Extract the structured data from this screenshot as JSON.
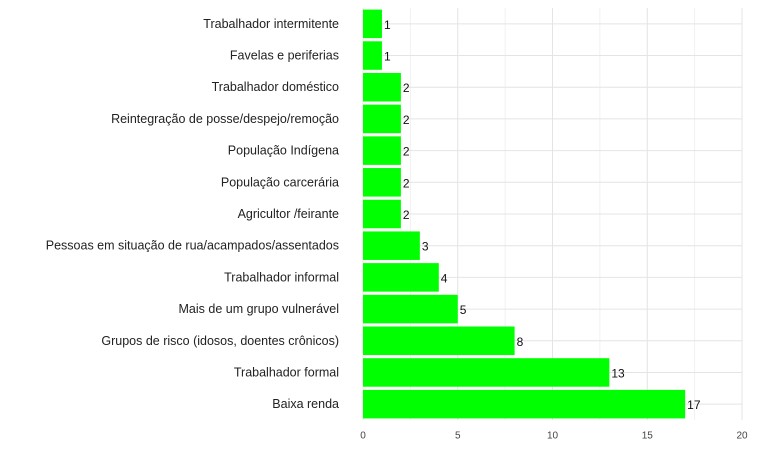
{
  "chart_data": {
    "type": "bar",
    "orientation": "horizontal",
    "title": "",
    "xlabel": "",
    "ylabel": "",
    "categories": [
      "Trabalhador intermitente",
      "Favelas e periferias",
      "Trabalhador doméstico",
      "Reintegração de posse/despejo/remoção",
      "População Indígena",
      "População carcerária",
      "Agricultor /feirante",
      "Pessoas em situação de rua/acampados/assentados",
      "Trabalhador informal",
      "Mais de um grupo vulnerável",
      "Grupos de risco (idosos, doentes crônicos)",
      "Trabalhador formal",
      "Baixa renda"
    ],
    "values": [
      1,
      1,
      2,
      2,
      2,
      2,
      2,
      3,
      4,
      5,
      8,
      13,
      17
    ],
    "xlim": [
      0,
      20
    ],
    "xticks": [
      0,
      5,
      10,
      15,
      20
    ],
    "grid": true,
    "bar_color": "#00ff00",
    "data_labels": true,
    "legend": "none"
  }
}
